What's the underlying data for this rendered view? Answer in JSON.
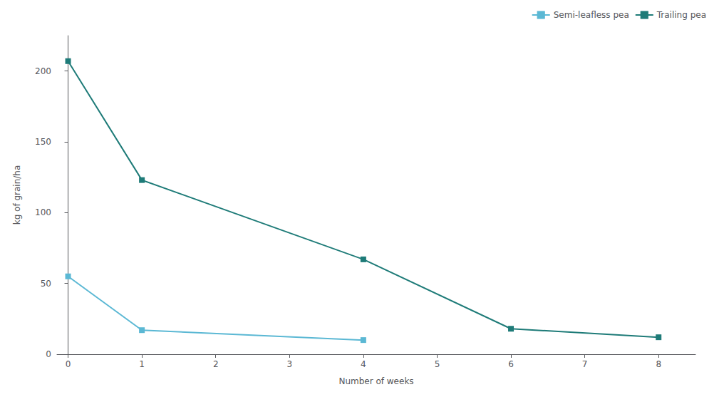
{
  "chart_data": {
    "type": "line",
    "xlabel": "Number of weeks",
    "ylabel": "kg of grain/ha",
    "series": [
      {
        "name": "Semi-leafless pea",
        "color": "#5bb8d4",
        "marker": "square",
        "line_style": "solid",
        "x": [
          0,
          1,
          4
        ],
        "values": [
          55,
          17,
          10
        ]
      },
      {
        "name": "Trailing pea",
        "color": "#1e7b78",
        "marker": "square",
        "line_style": "solid",
        "x": [
          0,
          1,
          4,
          6,
          8
        ],
        "values": [
          207,
          123,
          67,
          18,
          12
        ]
      }
    ],
    "xlim": [
      -0.15,
      8.5
    ],
    "ylim": [
      0,
      225
    ],
    "xticks": [
      0,
      1,
      2,
      3,
      4,
      5,
      6,
      7,
      8
    ],
    "yticks": [
      0,
      50,
      100,
      150,
      200
    ],
    "grid": false,
    "legend": "upper right"
  }
}
